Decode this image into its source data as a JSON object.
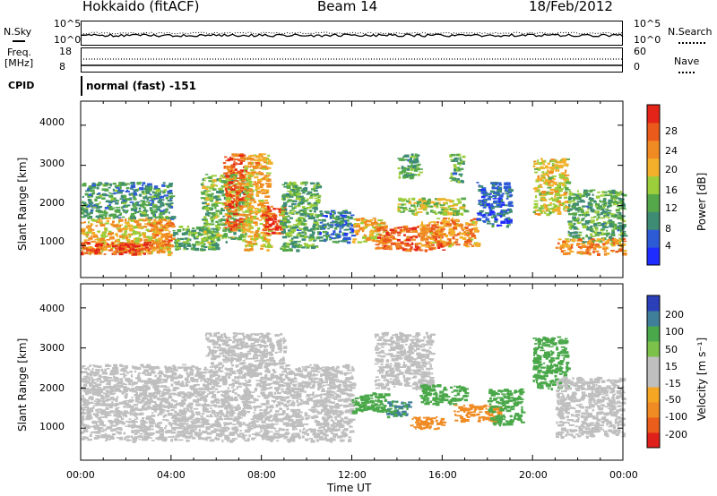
{
  "header": {
    "station": "Hokkaido (fitACF)",
    "beam": "Beam 14",
    "date": "18/Feb/2012"
  },
  "top_panels": {
    "nsky_label": "N.Sky",
    "nsky_tick_top": "10^5",
    "nsky_tick_bottom": "10^0",
    "nsearch_label": "N.Search",
    "nsearch_tick_top": "10^5",
    "nsearch_tick_bottom": "10^0",
    "freq_label_1": "Freq.",
    "freq_label_2": "[MHz]",
    "freq_tick_top": "18",
    "freq_tick_bottom": "8",
    "nave_label": "Nave",
    "nave_tick_top": "60",
    "nave_tick_bottom": "0",
    "cpid_label": "CPID",
    "cpid_value": "normal (fast) -151"
  },
  "axes": {
    "x_label": "Time UT",
    "x_ticks": [
      "00:00",
      "04:00",
      "08:00",
      "12:00",
      "16:00",
      "20:00",
      "00:00"
    ],
    "y_label": "Slant Range [km]",
    "y_ticks": [
      "1000",
      "2000",
      "3000",
      "4000"
    ]
  },
  "colorbars": {
    "power_label": "Power [dB]",
    "power_ticks": [
      "4",
      "8",
      "12",
      "16",
      "20",
      "24",
      "28"
    ],
    "velocity_label": "Velocity [m s⁻¹]",
    "velocity_ticks": [
      "-200",
      "-100",
      "-50",
      "-15",
      "15",
      "50",
      "100",
      "200"
    ]
  },
  "chart_data": {
    "type": "heatmap",
    "x_unit": "hours UT",
    "x_range": [
      0,
      24
    ],
    "y_range": [
      200,
      4600
    ],
    "power_scale": {
      "min": 0,
      "max": 32,
      "colors": [
        "#1f2cff",
        "#2d5bd6",
        "#3f8c74",
        "#55a84a",
        "#9ccd3a",
        "#f3b12b",
        "#f08a22",
        "#ea5a1a",
        "#e42418"
      ]
    },
    "velocity_scale": {
      "colors": [
        "#e0201a",
        "#ea5d1a",
        "#f08a22",
        "#f5a623",
        "#bfbfbf",
        "#bfbfbf",
        "#7cc24a",
        "#4aa84a",
        "#3f7f9a",
        "#2a3fb8"
      ]
    },
    "power_regions": [
      {
        "x": [
          0.0,
          3.9
        ],
        "y": [
          800,
          1700
        ],
        "level": 20
      },
      {
        "x": [
          0.0,
          3.0
        ],
        "y": [
          800,
          1100
        ],
        "level": 28
      },
      {
        "x": [
          0.0,
          4.0
        ],
        "y": [
          1700,
          2600
        ],
        "level": 10
      },
      {
        "x": [
          3.0,
          4.0
        ],
        "y": [
          1000,
          1600
        ],
        "level": 24
      },
      {
        "x": [
          4.0,
          6.0
        ],
        "y": [
          900,
          1500
        ],
        "level": 12
      },
      {
        "x": [
          5.3,
          7.5
        ],
        "y": [
          1100,
          2800
        ],
        "level": 14
      },
      {
        "x": [
          6.3,
          7.2
        ],
        "y": [
          1400,
          3300
        ],
        "level": 26
      },
      {
        "x": [
          7.2,
          8.3
        ],
        "y": [
          900,
          3300
        ],
        "level": 20
      },
      {
        "x": [
          8.0,
          9.0
        ],
        "y": [
          1300,
          2000
        ],
        "level": 28
      },
      {
        "x": [
          8.8,
          10.5
        ],
        "y": [
          900,
          2600
        ],
        "level": 12
      },
      {
        "x": [
          10.5,
          12.0
        ],
        "y": [
          1100,
          1900
        ],
        "level": 8
      },
      {
        "x": [
          12.0,
          13.5
        ],
        "y": [
          1100,
          1700
        ],
        "level": 20
      },
      {
        "x": [
          13.0,
          16.0
        ],
        "y": [
          900,
          1500
        ],
        "level": 26
      },
      {
        "x": [
          15.0,
          17.5
        ],
        "y": [
          1000,
          1700
        ],
        "level": 22
      },
      {
        "x": [
          14.0,
          17.0
        ],
        "y": [
          1800,
          2200
        ],
        "level": 16
      },
      {
        "x": [
          14.0,
          15.0
        ],
        "y": [
          2700,
          3300
        ],
        "level": 12
      },
      {
        "x": [
          16.3,
          16.9
        ],
        "y": [
          2600,
          3300
        ],
        "level": 12
      },
      {
        "x": [
          17.5,
          19.0
        ],
        "y": [
          1500,
          2600
        ],
        "level": 6
      },
      {
        "x": [
          20.0,
          21.5
        ],
        "y": [
          1800,
          3200
        ],
        "level": 18
      },
      {
        "x": [
          21.5,
          24.0
        ],
        "y": [
          1100,
          2400
        ],
        "level": 12
      },
      {
        "x": [
          21.0,
          24.0
        ],
        "y": [
          800,
          1200
        ],
        "level": 22
      }
    ],
    "velocity_regions": [
      {
        "x": [
          0.0,
          12.0
        ],
        "y": [
          700,
          1500
        ],
        "v": 0
      },
      {
        "x": [
          0.0,
          12.0
        ],
        "y": [
          1500,
          2600
        ],
        "v": 0
      },
      {
        "x": [
          5.5,
          9.0
        ],
        "y": [
          2600,
          3400
        ],
        "v": 0
      },
      {
        "x": [
          12.0,
          13.5
        ],
        "y": [
          1400,
          1900
        ],
        "v": 60
      },
      {
        "x": [
          13.5,
          14.5
        ],
        "y": [
          1300,
          1700
        ],
        "v": 80
      },
      {
        "x": [
          13.0,
          15.5
        ],
        "y": [
          2000,
          3400
        ],
        "v": 0
      },
      {
        "x": [
          15.0,
          17.0
        ],
        "y": [
          1600,
          2100
        ],
        "v": 50
      },
      {
        "x": [
          16.5,
          18.5
        ],
        "y": [
          1200,
          1600
        ],
        "v": -60
      },
      {
        "x": [
          14.5,
          16.0
        ],
        "y": [
          1000,
          1300
        ],
        "v": -50
      },
      {
        "x": [
          18.0,
          19.5
        ],
        "y": [
          1100,
          2000
        ],
        "v": 50
      },
      {
        "x": [
          20.0,
          21.5
        ],
        "y": [
          2000,
          3300
        ],
        "v": 50
      },
      {
        "x": [
          21.0,
          24.0
        ],
        "y": [
          800,
          2300
        ],
        "v": 0
      }
    ]
  }
}
